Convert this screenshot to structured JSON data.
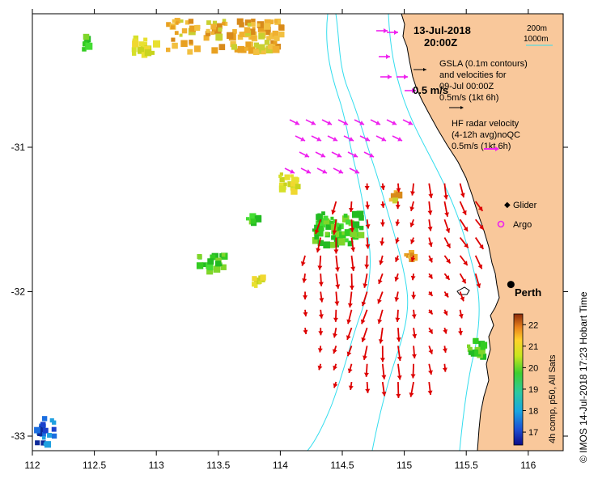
{
  "map": {
    "date_label": "13-Jul-2018",
    "time_label": "20:00Z",
    "depth_legend": [
      "200m",
      "1000m"
    ],
    "gsla_lines": [
      "GSLA (0.1m contours)",
      "and velocities for",
      "09-Jul 00:00Z",
      "0.5m/s (1kt 6h)"
    ],
    "hf_lines": [
      "HF radar velocity",
      "(4-12h avg)noQC",
      "0.5m/s (1kt 6h)"
    ],
    "scale_label": "0.5 m/s",
    "glider_label": "Glider",
    "argo_label": "Argo",
    "city_label": "Perth",
    "side_title": "©  IMOS 14-Jul-2018 17:23 Hobart Time",
    "colorbar_title": "4h comp, p50, All Sats",
    "colors": {
      "land": "#f9c89b",
      "isobath": "#33ddee",
      "hf_arrow": "#dd0000",
      "gsla_arrow": "#ee22ee"
    }
  },
  "chart_data": {
    "type": "map",
    "x_ticks": [
      "112",
      "112.5",
      "113",
      "113.5",
      "114",
      "114.5",
      "115",
      "115.5",
      "116"
    ],
    "y_ticks": [
      "-31",
      "-32",
      "-33"
    ],
    "lon_range": [
      112,
      116.3
    ],
    "lat_range": [
      -33.1,
      -30.15
    ],
    "colorbar": {
      "min": 16.4,
      "max": 22.5,
      "ticks": [
        "22",
        "21",
        "20",
        "19",
        "18",
        "17"
      ]
    },
    "perth": {
      "lon": 115.86,
      "lat": -31.95
    },
    "hf_grid": {
      "lon_start": 114.2,
      "lat_start": -31.25,
      "step": 0.125,
      "rows": [
        "....xxxxxxx..",
        "..xxxxxxxxxx.",
        ".xxxxxxxxxxx.",
        ".xxxxxxxxxxx.",
        "xxxxxxxxxxxx.",
        "xxxxxxxxxxxx.",
        "xxxxxxxxxxx..",
        "xxxxxxxxxxx..",
        "xxxxxxxxxxx..",
        ".xxxxxxxxx...",
        ".xxxxxxxxx...",
        "..xxxxxxx...."
      ]
    }
  }
}
